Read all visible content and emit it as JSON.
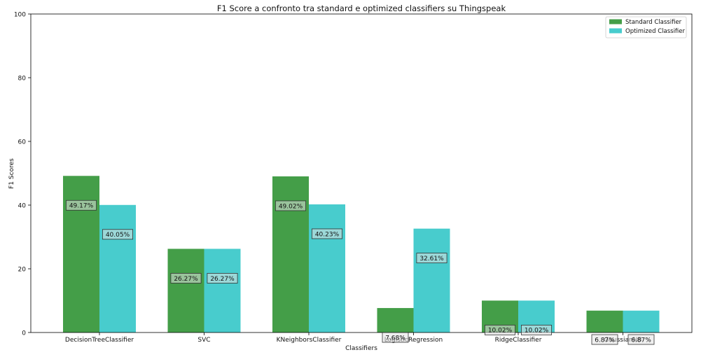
{
  "chart_data": {
    "type": "bar",
    "title": "F1 Score a confronto tra standard e optimized classifiers su Thingspeak",
    "xlabel": "Classifiers",
    "ylabel": "F1 Scores",
    "ylim": [
      0,
      100
    ],
    "yticks": [
      "0",
      "20",
      "40",
      "60",
      "80",
      "100"
    ],
    "categories": [
      "DecisionTreeClassifier",
      "SVC",
      "KNeighborsClassifier",
      "LogisticRegression",
      "RidgeClassifier",
      "GaussianNB"
    ],
    "series": [
      {
        "name": "Standard Classifier",
        "color": "#449e48",
        "values": [
          49.17,
          26.27,
          49.02,
          7.68,
          10.02,
          6.87
        ],
        "labels": [
          "49.17%",
          "26.27%",
          "49.02%",
          "7.68%",
          "10.02%",
          "6.87%"
        ]
      },
      {
        "name": "Optimized Classifier",
        "color": "#48cccd",
        "values": [
          40.05,
          26.27,
          40.23,
          32.61,
          10.02,
          6.87
        ],
        "labels": [
          "40.05%",
          "26.27%",
          "40.23%",
          "32.61%",
          "10.02%",
          "6.87%"
        ]
      }
    ],
    "grid": false,
    "legend_position": "top-right"
  }
}
